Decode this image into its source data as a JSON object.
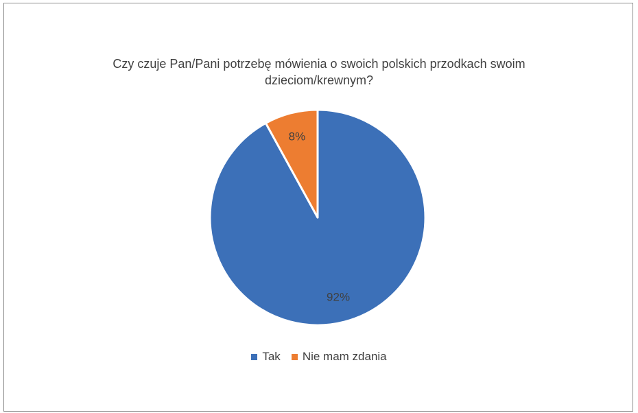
{
  "chart_data": {
    "type": "pie",
    "title_lines": [
      "Czy czuje Pan/Pani potrzebę mówienia o swoich polskich przodkach swoim",
      "dzieciom/krewnym?"
    ],
    "slices": [
      {
        "label": "Tak",
        "value": 92,
        "data_label": "92%",
        "color": "#3C70B8"
      },
      {
        "label": "Nie mam zdania",
        "value": 8,
        "data_label": "8%",
        "color": "#ED7D31"
      }
    ],
    "start_angle_deg": 0,
    "direction": "clockwise",
    "legend_position": "bottom",
    "slice_separator_color": "#FFFFFF"
  }
}
